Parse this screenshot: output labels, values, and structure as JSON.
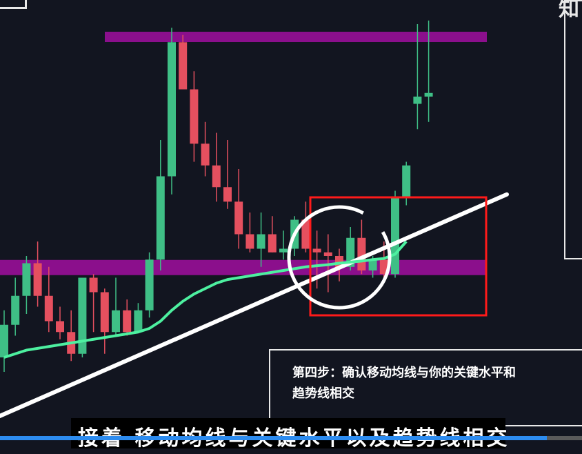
{
  "chart_data": {
    "type": "candlestick",
    "title": "",
    "colors": {
      "up": "#3fbf86",
      "down": "#e5505f",
      "moving_average": "#4df0a0",
      "trendline": "#ffffff",
      "key_level_band": "#8b0f8c",
      "highlight_box": "#ff1a1a",
      "highlight_circle": "#ffffff"
    },
    "ylim": [
      0,
      100
    ],
    "candles": [
      {
        "o": 8,
        "h": 21,
        "l": 4,
        "c": 17
      },
      {
        "o": 17,
        "h": 30,
        "l": 14,
        "c": 25
      },
      {
        "o": 25,
        "h": 36,
        "l": 20,
        "c": 34
      },
      {
        "o": 34,
        "h": 40,
        "l": 22,
        "c": 25
      },
      {
        "o": 25,
        "h": 33,
        "l": 15,
        "c": 18
      },
      {
        "o": 18,
        "h": 22,
        "l": 13,
        "c": 15
      },
      {
        "o": 15,
        "h": 21,
        "l": 7,
        "c": 9
      },
      {
        "o": 9,
        "h": 30,
        "l": 8,
        "c": 30
      },
      {
        "o": 30,
        "h": 31,
        "l": 15,
        "c": 26
      },
      {
        "o": 26,
        "h": 27,
        "l": 9,
        "c": 15
      },
      {
        "o": 15,
        "h": 30,
        "l": 14,
        "c": 21
      },
      {
        "o": 21,
        "h": 24,
        "l": 14,
        "c": 15
      },
      {
        "o": 15,
        "h": 23,
        "l": 15,
        "c": 21
      },
      {
        "o": 21,
        "h": 37,
        "l": 19,
        "c": 35
      },
      {
        "o": 35,
        "h": 68,
        "l": 32,
        "c": 58
      },
      {
        "o": 58,
        "h": 99,
        "l": 53,
        "c": 95
      },
      {
        "o": 95,
        "h": 97,
        "l": 82,
        "c": 82
      },
      {
        "o": 82,
        "h": 87,
        "l": 62,
        "c": 67
      },
      {
        "o": 67,
        "h": 73,
        "l": 58,
        "c": 61
      },
      {
        "o": 61,
        "h": 70,
        "l": 51,
        "c": 55
      },
      {
        "o": 55,
        "h": 68,
        "l": 49,
        "c": 51
      },
      {
        "o": 51,
        "h": 60,
        "l": 38,
        "c": 42
      },
      {
        "o": 42,
        "h": 48,
        "l": 37,
        "c": 38
      },
      {
        "o": 38,
        "h": 48,
        "l": 33,
        "c": 42
      },
      {
        "o": 42,
        "h": 47,
        "l": 37,
        "c": 37
      },
      {
        "o": 37,
        "h": 43,
        "l": 35,
        "c": 38
      },
      {
        "o": 38,
        "h": 47,
        "l": 36,
        "c": 46
      },
      {
        "o": 46,
        "h": 51,
        "l": 37,
        "c": 38
      },
      {
        "o": 38,
        "h": 43,
        "l": 27,
        "c": 37
      },
      {
        "o": 37,
        "h": 42,
        "l": 26,
        "c": 36
      },
      {
        "o": 36,
        "h": 38,
        "l": 29,
        "c": 33
      },
      {
        "o": 33,
        "h": 44,
        "l": 32,
        "c": 41
      },
      {
        "o": 41,
        "h": 46,
        "l": 31,
        "c": 32
      },
      {
        "o": 32,
        "h": 36,
        "l": 30,
        "c": 35
      },
      {
        "o": 35,
        "h": 40,
        "l": 30,
        "c": 31
      },
      {
        "o": 31,
        "h": 54,
        "l": 30,
        "c": 52
      },
      {
        "o": 52,
        "h": 62,
        "l": 50,
        "c": 61
      },
      {
        "o": 78,
        "h": 100,
        "l": 71,
        "c": 80
      },
      {
        "o": 80,
        "h": 101,
        "l": 73,
        "c": 81
      }
    ],
    "moving_average": [
      8,
      9,
      10,
      10.5,
      11,
      11.5,
      12,
      12.5,
      13,
      13.5,
      14,
      14.5,
      15,
      16,
      18,
      21,
      23.5,
      25.5,
      27,
      28.5,
      29.5,
      30,
      30.5,
      31,
      31.5,
      32,
      32.5,
      33,
      33.3,
      33.6,
      34,
      34.3,
      34.6,
      35,
      35.3,
      36.5,
      40
    ],
    "horizontal_levels": [
      96,
      33
    ],
    "trendline": {
      "from": [
        -1,
        -9
      ],
      "to": [
        45,
        53
      ]
    }
  },
  "step_note": {
    "line1": "第四步：确认移动均线与你的关键水平和",
    "line2": "趋势线相交"
  },
  "subtitle": "接着 移动均线与关键水平以及趋势线相交",
  "side_glyph": "知",
  "video_progress": 0.94
}
